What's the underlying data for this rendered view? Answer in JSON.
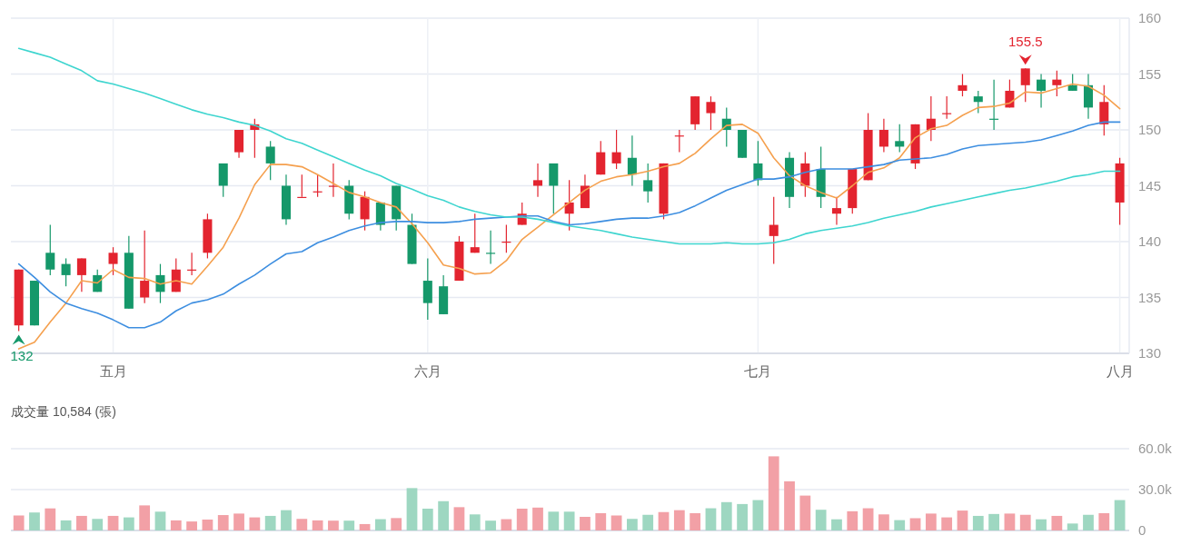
{
  "chart_data": [
    {
      "type": "candlestick",
      "categories": [
        null,
        null,
        null,
        null,
        null,
        null,
        "五月",
        null,
        null,
        null,
        null,
        null,
        null,
        null,
        null,
        null,
        null,
        null,
        null,
        null,
        null,
        null,
        null,
        null,
        null,
        null,
        "六月",
        null,
        null,
        null,
        null,
        null,
        null,
        null,
        null,
        null,
        null,
        null,
        null,
        null,
        null,
        null,
        null,
        null,
        null,
        null,
        null,
        "七月",
        null,
        null,
        null,
        null,
        null,
        null,
        null,
        null,
        null,
        null,
        null,
        null,
        null,
        null,
        null,
        null,
        null,
        null,
        null,
        null,
        null,
        null,
        "八月"
      ],
      "ohlc": [
        [
          132.5,
          137.5,
          132,
          137.5
        ],
        [
          136.5,
          136.5,
          132.5,
          132.5
        ],
        [
          139,
          141.5,
          137,
          137.5
        ],
        [
          138,
          138.5,
          136,
          137
        ],
        [
          137,
          138.5,
          135.5,
          138.5
        ],
        [
          137,
          137.5,
          135.5,
          135.5
        ],
        [
          138,
          139.5,
          137,
          139
        ],
        [
          139,
          140.5,
          134,
          134
        ],
        [
          135,
          141,
          134.5,
          136.5
        ],
        [
          137,
          138,
          134.5,
          135.5
        ],
        [
          135.5,
          138.5,
          135.5,
          137.5
        ],
        [
          137.5,
          139,
          137,
          137.5
        ],
        [
          139,
          142.5,
          138.5,
          142
        ],
        [
          147,
          147,
          144,
          145
        ],
        [
          148,
          150,
          147.5,
          150
        ],
        [
          150,
          151,
          147.5,
          150.5
        ],
        [
          148.5,
          149,
          145.5,
          147
        ],
        [
          145,
          146,
          141.5,
          142
        ],
        [
          144,
          146,
          144,
          144
        ],
        [
          144.5,
          146,
          144,
          144.5
        ],
        [
          145,
          147,
          144,
          145
        ],
        [
          145,
          145.5,
          142,
          142.5
        ],
        [
          142,
          144.5,
          141,
          144
        ],
        [
          143.5,
          143.5,
          141,
          141.5
        ],
        [
          145,
          145,
          141,
          142
        ],
        [
          141.5,
          142.5,
          138,
          138
        ],
        [
          136.5,
          138.5,
          133,
          134.5
        ],
        [
          136,
          137,
          133.5,
          133.5
        ],
        [
          136.5,
          140.5,
          136.5,
          140
        ],
        [
          139,
          142.5,
          139,
          139.5
        ],
        [
          139,
          141,
          138,
          139
        ],
        [
          140,
          141.5,
          139,
          140
        ],
        [
          141.5,
          143.5,
          141.5,
          142.5
        ],
        [
          145,
          147,
          144,
          145.5
        ],
        [
          147,
          147,
          142.5,
          145
        ],
        [
          142.5,
          145.5,
          141,
          143.5
        ],
        [
          143,
          146,
          143,
          145
        ],
        [
          146,
          149,
          146,
          148
        ],
        [
          147,
          150,
          146.5,
          148
        ],
        [
          147.5,
          149.5,
          145,
          146
        ],
        [
          145.5,
          147,
          143.5,
          144.5
        ],
        [
          142.5,
          147,
          142,
          147
        ],
        [
          149.5,
          150,
          148,
          149.5
        ],
        [
          150.5,
          153,
          150,
          153
        ],
        [
          151.5,
          153,
          150,
          152.5
        ],
        [
          151,
          152,
          148.5,
          150
        ],
        [
          150,
          150,
          147.5,
          147.5
        ],
        [
          147,
          149,
          145,
          145.5
        ],
        [
          140.5,
          144,
          138,
          141.5
        ],
        [
          147.5,
          148,
          143,
          144
        ],
        [
          145,
          148,
          144,
          147
        ],
        [
          146.5,
          148.5,
          143,
          144
        ],
        [
          142.5,
          144,
          141.5,
          143
        ],
        [
          143,
          146.5,
          142.5,
          146.5
        ],
        [
          145.5,
          151.5,
          145.5,
          150
        ],
        [
          148.5,
          151,
          148,
          150
        ],
        [
          149,
          150.5,
          148,
          148.5
        ],
        [
          147,
          150.5,
          146.5,
          150.5
        ],
        [
          150,
          153,
          149,
          151
        ],
        [
          151.5,
          153,
          151,
          151.5
        ],
        [
          153.5,
          155,
          153,
          154
        ],
        [
          153,
          153.5,
          151.5,
          152.5
        ],
        [
          151,
          154.5,
          150,
          151
        ],
        [
          152,
          154.5,
          152,
          153.5
        ],
        [
          154,
          155.5,
          152.5,
          155.5
        ],
        [
          154.5,
          155,
          152,
          153.5
        ],
        [
          154,
          155.3,
          153,
          154.5
        ],
        [
          154,
          155,
          153.5,
          153.5
        ],
        [
          154,
          155,
          151,
          152
        ],
        [
          150.5,
          154,
          149.5,
          152.5
        ],
        [
          143.5,
          147.5,
          141.5,
          147
        ]
      ],
      "colors": [
        "#e3242f",
        "#15986a",
        "#15986a",
        "#15986a",
        "#e3242f",
        "#15986a",
        "#e3242f",
        "#15986a",
        "#e3242f",
        "#15986a",
        "#e3242f",
        "#e3242f",
        "#e3242f",
        "#15986a",
        "#e3242f",
        "#e3242f",
        "#15986a",
        "#15986a",
        "#e3242f",
        "#e3242f",
        "#e3242f",
        "#15986a",
        "#e3242f",
        "#15986a",
        "#15986a",
        "#15986a",
        "#15986a",
        "#15986a",
        "#e3242f",
        "#e3242f",
        "#15986a",
        "#e3242f",
        "#e3242f",
        "#e3242f",
        "#15986a",
        "#e3242f",
        "#e3242f",
        "#e3242f",
        "#e3242f",
        "#15986a",
        "#15986a",
        "#e3242f",
        "#e3242f",
        "#e3242f",
        "#e3242f",
        "#15986a",
        "#15986a",
        "#15986a",
        "#e3242f",
        "#15986a",
        "#e3242f",
        "#15986a",
        "#e3242f",
        "#e3242f",
        "#e3242f",
        "#e3242f",
        "#15986a",
        "#e3242f",
        "#e3242f",
        "#e3242f",
        "#e3242f",
        "#15986a",
        "#15986a",
        "#e3242f",
        "#e3242f",
        "#15986a",
        "#e3242f",
        "#15986a",
        "#15986a",
        "#e3242f",
        "#e3242f"
      ],
      "series": [
        {
          "type": "line",
          "color": "#f5a04e",
          "values": [
            130.4,
            131.0,
            132.8,
            134.5,
            136.5,
            136.3,
            137.5,
            136.8,
            136.7,
            136.2,
            136.5,
            136.2,
            137.8,
            139.5,
            142.1,
            145.1,
            146.9,
            146.9,
            146.7,
            146.0,
            145.2,
            144.4,
            144.0,
            143.5,
            143.1,
            141.6,
            139.9,
            137.9,
            137.6,
            137.1,
            137.2,
            138.3,
            140.2,
            141.3,
            142.4,
            143.5,
            144.6,
            145.4,
            145.8,
            146.0,
            146.3,
            146.7,
            147.0,
            147.9,
            149.2,
            150.4,
            150.5,
            149.7,
            147.5,
            145.9,
            145.0,
            144.4,
            143.9,
            145.0,
            146.2,
            146.6,
            147.5,
            149.3,
            150.1,
            150.4,
            151.3,
            152.0,
            152.1,
            152.4,
            153.4,
            153.3,
            153.7,
            154.1,
            153.9,
            153.1,
            151.9
          ]
        },
        {
          "type": "line",
          "color": "#3d8ee0",
          "values": [
            138.0,
            136.8,
            135.5,
            134.5,
            134.0,
            133.6,
            133.0,
            132.3,
            132.3,
            132.8,
            133.8,
            134.5,
            134.8,
            135.3,
            136.2,
            137.0,
            138.0,
            138.9,
            139.1,
            139.9,
            140.4,
            141.0,
            141.4,
            141.7,
            141.8,
            141.8,
            141.7,
            141.7,
            141.8,
            142.0,
            142.1,
            142.2,
            142.3,
            142.3,
            141.8,
            141.5,
            141.6,
            141.8,
            142.0,
            142.1,
            142.1,
            142.3,
            142.6,
            143.2,
            143.9,
            144.6,
            145.1,
            145.6,
            145.6,
            145.8,
            146.2,
            146.5,
            146.5,
            146.5,
            146.7,
            146.9,
            147.3,
            147.4,
            147.5,
            147.8,
            148.3,
            148.6,
            148.7,
            148.8,
            148.9,
            149.1,
            149.5,
            149.9,
            150.4,
            150.7,
            150.7
          ]
        },
        {
          "type": "line",
          "color": "#3ed5cf",
          "values": [
            157.3,
            156.9,
            156.5,
            155.9,
            155.3,
            154.4,
            154.1,
            153.7,
            153.3,
            152.8,
            152.3,
            151.8,
            151.4,
            151.1,
            150.7,
            150.4,
            149.9,
            149.2,
            148.8,
            148.2,
            147.6,
            147.0,
            146.4,
            145.9,
            145.2,
            144.7,
            144.1,
            143.7,
            143.1,
            142.7,
            142.4,
            142.2,
            142.2,
            142.0,
            141.7,
            141.4,
            141.2,
            141.0,
            140.7,
            140.4,
            140.2,
            140.0,
            139.8,
            139.8,
            139.8,
            139.9,
            139.8,
            139.8,
            139.9,
            140.2,
            140.7,
            141.0,
            141.2,
            141.4,
            141.7,
            142.1,
            142.4,
            142.7,
            143.1,
            143.4,
            143.7,
            144.0,
            144.3,
            144.6,
            144.8,
            145.1,
            145.4,
            145.8,
            146.0,
            146.3,
            146.3
          ]
        }
      ],
      "ylim": [
        130,
        160
      ],
      "yticks": [
        130,
        135,
        140,
        145,
        150,
        155,
        160
      ],
      "grid": true,
      "annotations": [
        "155.5",
        "132"
      ]
    },
    {
      "type": "bar",
      "title": "成交量 10,584 (張)",
      "categories": [
        null,
        null,
        null,
        null,
        null,
        null,
        null,
        null,
        null,
        null,
        null,
        null,
        null,
        null,
        null,
        null,
        null,
        null,
        null,
        null,
        null,
        null,
        null,
        null,
        null,
        null,
        null,
        null,
        null,
        null,
        null,
        null,
        null,
        null,
        null,
        null,
        null,
        null,
        null,
        null,
        null,
        null,
        null,
        null,
        null,
        null,
        null,
        null,
        null,
        null,
        null,
        null,
        null,
        null,
        null,
        null,
        null,
        null,
        null,
        null,
        null,
        null,
        null,
        null,
        null,
        null,
        null,
        null,
        null,
        null,
        null
      ],
      "values": [
        11000,
        13200,
        16200,
        7400,
        10700,
        8500,
        10700,
        9600,
        18400,
        13800,
        7400,
        6600,
        8000,
        11300,
        12400,
        9600,
        10700,
        14900,
        8500,
        7400,
        7200,
        7200,
        4700,
        8300,
        9100,
        31100,
        16000,
        21500,
        17100,
        11800,
        7200,
        8300,
        16000,
        16800,
        13800,
        13800,
        10000,
        12700,
        11000,
        8500,
        11500,
        13500,
        14900,
        12700,
        16300,
        20800,
        19400,
        22300,
        54400,
        36100,
        25600,
        15200,
        8200,
        14100,
        16300,
        11800,
        7600,
        9000,
        12400,
        9600,
        14600,
        10700,
        12100,
        12400,
        11500,
        8200,
        10700,
        5100,
        11500,
        12700,
        22300
      ],
      "colors": [
        "#f2a0a6",
        "#9ed7c1",
        "#f2a0a6",
        "#9ed7c1",
        "#f2a0a6",
        "#9ed7c1",
        "#f2a0a6",
        "#9ed7c1",
        "#f2a0a6",
        "#9ed7c1",
        "#f2a0a6",
        "#f2a0a6",
        "#f2a0a6",
        "#f2a0a6",
        "#f2a0a6",
        "#f2a0a6",
        "#9ed7c1",
        "#9ed7c1",
        "#f2a0a6",
        "#f2a0a6",
        "#f2a0a6",
        "#9ed7c1",
        "#f2a0a6",
        "#9ed7c1",
        "#f2a0a6",
        "#9ed7c1",
        "#9ed7c1",
        "#9ed7c1",
        "#f2a0a6",
        "#9ed7c1",
        "#9ed7c1",
        "#f2a0a6",
        "#f2a0a6",
        "#f2a0a6",
        "#9ed7c1",
        "#9ed7c1",
        "#f2a0a6",
        "#f2a0a6",
        "#f2a0a6",
        "#9ed7c1",
        "#9ed7c1",
        "#f2a0a6",
        "#f2a0a6",
        "#f2a0a6",
        "#9ed7c1",
        "#9ed7c1",
        "#9ed7c1",
        "#9ed7c1",
        "#f2a0a6",
        "#f2a0a6",
        "#f2a0a6",
        "#9ed7c1",
        "#9ed7c1",
        "#f2a0a6",
        "#f2a0a6",
        "#f2a0a6",
        "#9ed7c1",
        "#f2a0a6",
        "#f2a0a6",
        "#f2a0a6",
        "#f2a0a6",
        "#9ed7c1",
        "#9ed7c1",
        "#f2a0a6",
        "#f2a0a6",
        "#9ed7c1",
        "#f2a0a6",
        "#9ed7c1",
        "#9ed7c1",
        "#f2a0a6",
        "#9ed7c1"
      ],
      "ylim": [
        0,
        60000
      ],
      "yticks": [
        0,
        {
          "value": 30000,
          "label": "30.0k"
        },
        {
          "value": 60000,
          "label": "60.0k"
        }
      ],
      "grid": "y",
      "tick_labels": "y"
    }
  ]
}
